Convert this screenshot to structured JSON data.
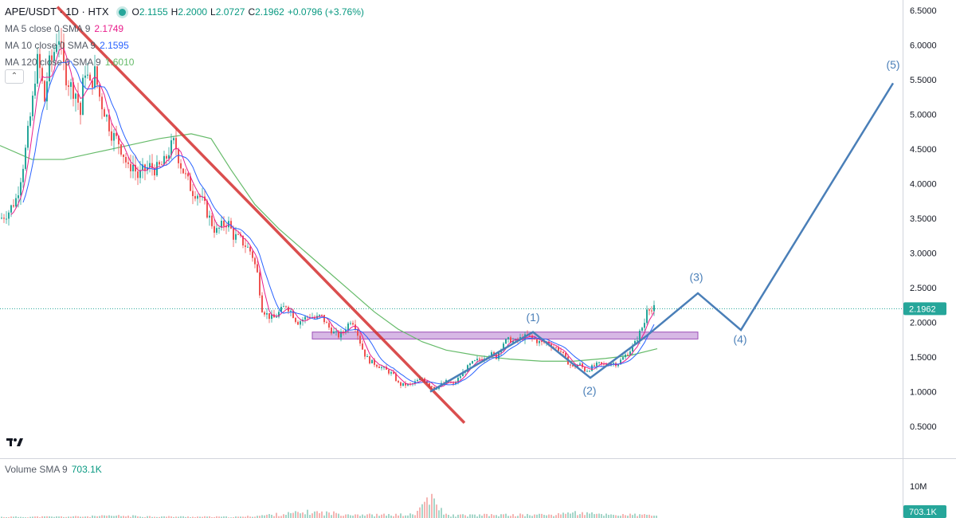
{
  "header": {
    "symbol": "APE/USDT · 1D · HTX",
    "open_label": "O",
    "open": "2.1155",
    "high_label": "H",
    "high": "2.2000",
    "low_label": "L",
    "low": "2.0727",
    "close_label": "C",
    "close": "2.1962",
    "change": "+0.0796 (+3.76%)",
    "indicators": [
      {
        "name": "MA 5 close 0 SMA 9",
        "value": "2.1749",
        "color": "#e91e8c"
      },
      {
        "name": "MA 10 close 0 SMA 9",
        "value": "2.1595",
        "color": "#2962ff"
      },
      {
        "name": "MA 120 close 0 SMA 9",
        "value": "1.6010",
        "color": "#66bb6a"
      }
    ]
  },
  "volume": {
    "legend_name": "Volume SMA 9",
    "legend_value": "703.1K",
    "axis_tick": "10M",
    "last_label": "703.1K"
  },
  "colors": {
    "up": "#26a69a",
    "down": "#ef5350",
    "ma5": "#e91e8c",
    "ma10": "#2962ff",
    "ma120": "#66bb6a",
    "trendline": "#d32f2f",
    "wave": "#4a7fb8",
    "zone": "#c9a0dc",
    "zone_border": "#9c4fb8",
    "axis_bg": "#ffffff",
    "price_label_bg": "#26a69a"
  },
  "chart_data": {
    "type": "candlestick",
    "title": "APE/USDT · 1D · HTX",
    "y_ticks": [
      "6.5000",
      "6.0000",
      "5.5000",
      "5.0000",
      "4.5000",
      "4.0000",
      "3.5000",
      "3.0000",
      "2.5000",
      "2.0000",
      "1.5000",
      "1.0000",
      "0.5000"
    ],
    "ylim": [
      0.0,
      6.7
    ],
    "last_price": "2.1962",
    "last_price_value": 2.1962,
    "price_path": [
      [
        0,
        3.5
      ],
      [
        10,
        3.6
      ],
      [
        20,
        3.8
      ],
      [
        30,
        4.4
      ],
      [
        40,
        5.2
      ],
      [
        45,
        5.8
      ],
      [
        50,
        5.6
      ],
      [
        55,
        5.2
      ],
      [
        60,
        5.7
      ],
      [
        65,
        5.8
      ],
      [
        72,
        6.2
      ],
      [
        80,
        5.6
      ],
      [
        88,
        5.4
      ],
      [
        95,
        5.3
      ],
      [
        100,
        5.0
      ],
      [
        105,
        5.7
      ],
      [
        112,
        5.4
      ],
      [
        118,
        5.6
      ],
      [
        125,
        5.2
      ],
      [
        132,
        5.0
      ],
      [
        140,
        4.7
      ],
      [
        148,
        4.6
      ],
      [
        155,
        4.4
      ],
      [
        160,
        4.2
      ],
      [
        165,
        4.3
      ],
      [
        172,
        4.1
      ],
      [
        180,
        4.2
      ],
      [
        188,
        4.25
      ],
      [
        195,
        4.2
      ],
      [
        205,
        4.3
      ],
      [
        212,
        4.5
      ],
      [
        218,
        4.6
      ],
      [
        225,
        4.3
      ],
      [
        232,
        4.1
      ],
      [
        240,
        3.9
      ],
      [
        248,
        3.85
      ],
      [
        255,
        3.7
      ],
      [
        262,
        3.5
      ],
      [
        270,
        3.3
      ],
      [
        278,
        3.4
      ],
      [
        285,
        3.45
      ],
      [
        292,
        3.25
      ],
      [
        300,
        3.2
      ],
      [
        308,
        3.1
      ],
      [
        315,
        3.0
      ],
      [
        322,
        2.7
      ],
      [
        328,
        2.2
      ],
      [
        335,
        2.1
      ],
      [
        342,
        2.05
      ],
      [
        350,
        2.15
      ],
      [
        358,
        2.25
      ],
      [
        365,
        2.15
      ],
      [
        372,
        2.0
      ],
      [
        380,
        2.05
      ],
      [
        388,
        2.1
      ],
      [
        395,
        2.05
      ],
      [
        402,
        2.1
      ],
      [
        410,
        1.95
      ],
      [
        418,
        1.85
      ],
      [
        425,
        1.8
      ],
      [
        432,
        1.9
      ],
      [
        440,
        2.05
      ],
      [
        445,
        1.95
      ],
      [
        450,
        1.75
      ],
      [
        456,
        1.55
      ],
      [
        462,
        1.45
      ],
      [
        470,
        1.4
      ],
      [
        478,
        1.35
      ],
      [
        485,
        1.3
      ],
      [
        492,
        1.25
      ],
      [
        500,
        1.1
      ],
      [
        508,
        1.1
      ],
      [
        515,
        1.1
      ],
      [
        522,
        1.15
      ],
      [
        530,
        1.2
      ],
      [
        538,
        1.1
      ],
      [
        545,
        1.05
      ],
      [
        552,
        1.1
      ],
      [
        560,
        1.15
      ],
      [
        568,
        1.1
      ],
      [
        575,
        1.2
      ],
      [
        582,
        1.3
      ],
      [
        590,
        1.4
      ],
      [
        598,
        1.45
      ],
      [
        606,
        1.5
      ],
      [
        614,
        1.55
      ],
      [
        622,
        1.5
      ],
      [
        630,
        1.7
      ],
      [
        638,
        1.75
      ],
      [
        646,
        1.72
      ],
      [
        654,
        1.78
      ],
      [
        662,
        1.8
      ],
      [
        670,
        1.75
      ],
      [
        678,
        1.7
      ],
      [
        686,
        1.72
      ],
      [
        694,
        1.65
      ],
      [
        702,
        1.6
      ],
      [
        710,
        1.45
      ],
      [
        718,
        1.35
      ],
      [
        726,
        1.4
      ],
      [
        734,
        1.3
      ],
      [
        742,
        1.35
      ],
      [
        750,
        1.4
      ],
      [
        758,
        1.38
      ],
      [
        766,
        1.42
      ],
      [
        774,
        1.4
      ],
      [
        782,
        1.5
      ],
      [
        790,
        1.6
      ],
      [
        796,
        1.7
      ],
      [
        802,
        1.85
      ],
      [
        808,
        2.0
      ],
      [
        812,
        2.3
      ],
      [
        816,
        2.15
      ],
      [
        820,
        2.2
      ]
    ],
    "ma120_path": [
      [
        0,
        4.55
      ],
      [
        40,
        4.35
      ],
      [
        80,
        4.35
      ],
      [
        120,
        4.45
      ],
      [
        160,
        4.55
      ],
      [
        200,
        4.65
      ],
      [
        240,
        4.72
      ],
      [
        265,
        4.65
      ],
      [
        290,
        4.2
      ],
      [
        320,
        3.7
      ],
      [
        350,
        3.35
      ],
      [
        380,
        3.05
      ],
      [
        410,
        2.75
      ],
      [
        440,
        2.45
      ],
      [
        470,
        2.15
      ],
      [
        500,
        1.9
      ],
      [
        530,
        1.72
      ],
      [
        560,
        1.6
      ],
      [
        600,
        1.52
      ],
      [
        640,
        1.47
      ],
      [
        680,
        1.44
      ],
      [
        720,
        1.44
      ],
      [
        760,
        1.48
      ],
      [
        790,
        1.52
      ],
      [
        825,
        1.62
      ]
    ],
    "volume_path": [
      [
        0,
        0.3
      ],
      [
        100,
        0.4
      ],
      [
        145,
        0.6
      ],
      [
        200,
        0.4
      ],
      [
        300,
        0.3
      ],
      [
        390,
        1.6
      ],
      [
        405,
        1.4
      ],
      [
        470,
        0.8
      ],
      [
        520,
        0.9
      ],
      [
        536,
        5.6
      ],
      [
        560,
        0.7
      ],
      [
        620,
        0.8
      ],
      [
        700,
        0.9
      ],
      [
        708,
        1.6
      ],
      [
        740,
        1.1
      ],
      [
        770,
        0.9
      ],
      [
        810,
        0.8
      ],
      [
        825,
        0.8
      ]
    ],
    "volume_ylim": [
      0,
      12
    ],
    "annotations": {
      "trendline": [
        [
          72,
          6.55
        ],
        [
          583,
          0.55
        ]
      ],
      "resistance_zone": {
        "x0": 392,
        "x1": 876,
        "y_low": 1.76,
        "y_high": 1.86
      },
      "wave_path": [
        [
          540,
          1.0
        ],
        [
          669,
          1.86
        ],
        [
          741,
          1.2
        ],
        [
          811,
          1.8
        ],
        [
          876,
          2.42
        ],
        [
          930,
          1.89
        ],
        [
          1121,
          5.45
        ]
      ],
      "wave_labels": [
        {
          "text": "(1)",
          "x": 669,
          "y": 2.02
        },
        {
          "text": "(2)",
          "x": 740,
          "y": 0.96
        },
        {
          "text": "(3)",
          "x": 874,
          "y": 2.6
        },
        {
          "text": "(4)",
          "x": 929,
          "y": 1.7
        },
        {
          "text": "(5)",
          "x": 1121,
          "y": 5.66
        }
      ]
    }
  }
}
